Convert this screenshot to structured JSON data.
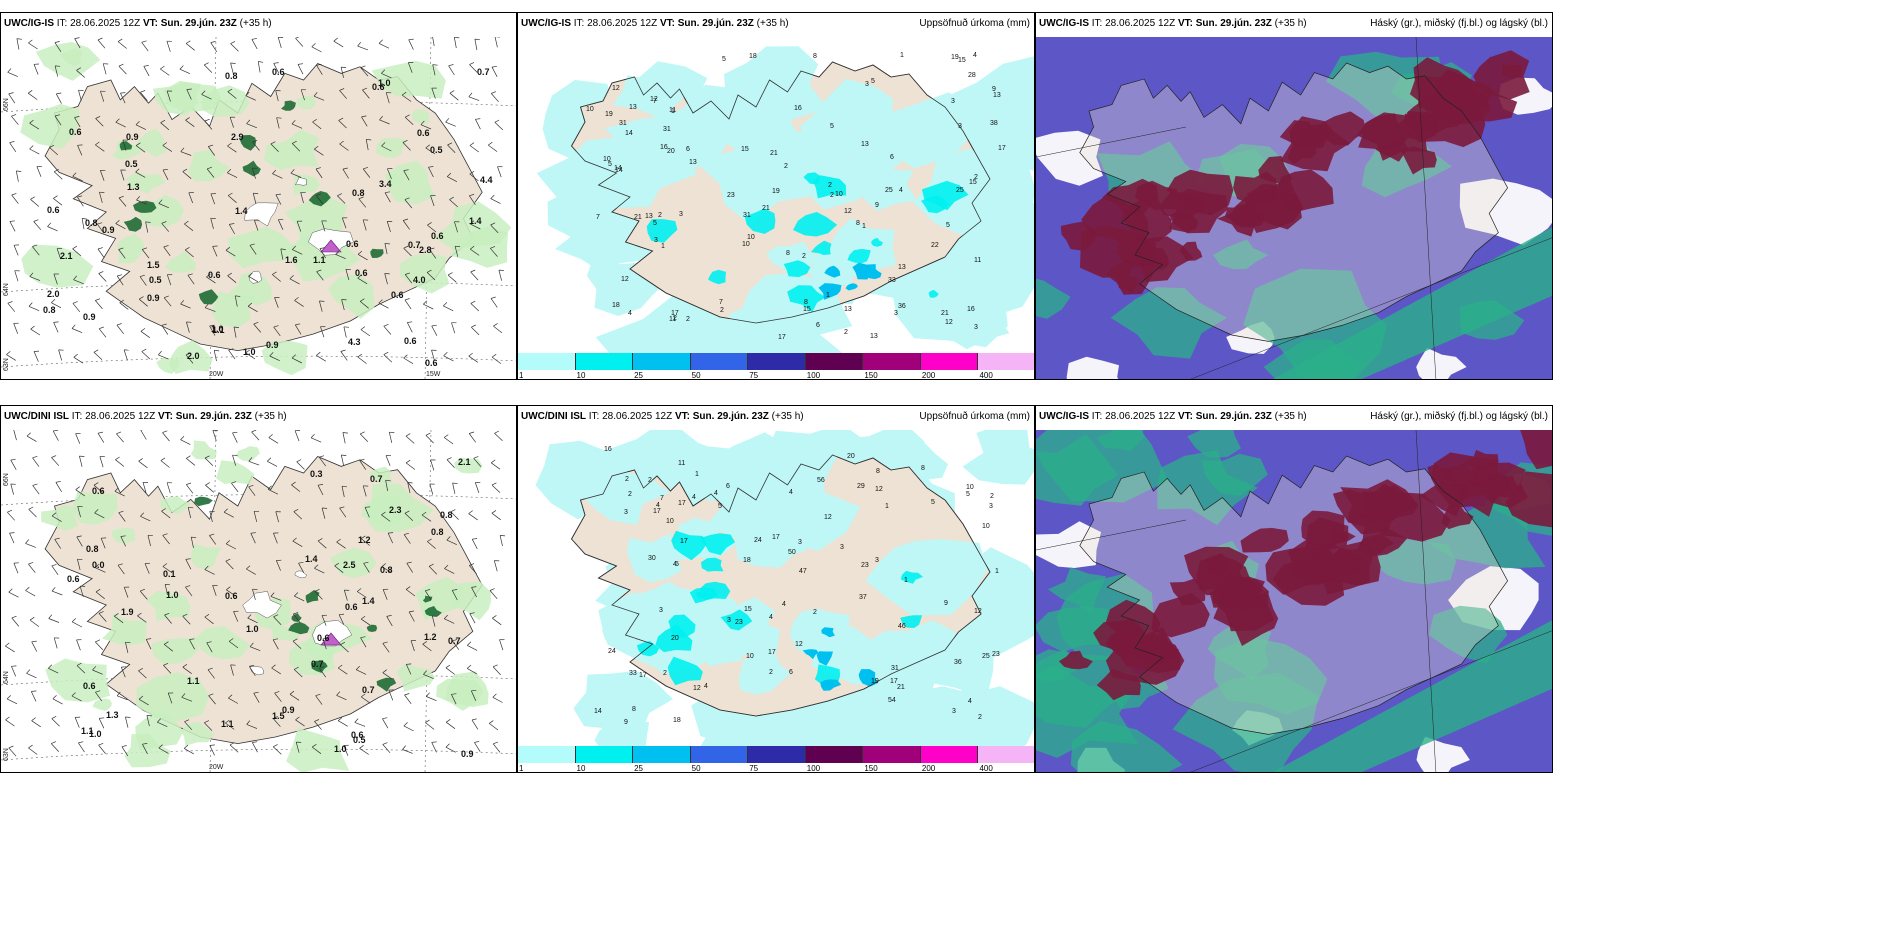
{
  "rows": [
    {
      "model": "UWC/IG-IS",
      "panels": [
        {
          "source": "UWC/IG-IS",
          "it_label": "IT:",
          "it": "28.06.2025 12Z",
          "vt_label": "VT:",
          "vt": "Sun. 29.jún. 23Z",
          "lead": "(+35 h)",
          "right": ""
        },
        {
          "source": "UWC/IG-IS",
          "it_label": "IT:",
          "it": "28.06.2025 12Z",
          "vt_label": "VT:",
          "vt": "Sun. 29.jún. 23Z",
          "lead": "(+35 h)",
          "right": "Uppsöfnuð úrkoma (mm)"
        },
        {
          "source": "UWC/IG-IS",
          "it_label": "IT:",
          "it": "28.06.2025 12Z",
          "vt_label": "VT:",
          "vt": "Sun. 29.jún. 23Z",
          "lead": "(+35 h)",
          "right": "Háský (gr.), miðský (fj.bl.) og lágský (bl.)"
        }
      ],
      "precip_values": [
        "3",
        "2",
        "1",
        "1",
        "2",
        "4",
        "5",
        "3",
        "2",
        "2",
        "4",
        "5",
        "8",
        "7",
        "6",
        "8",
        "5",
        "7",
        "12",
        "13",
        "12",
        "13",
        "11",
        "15",
        "11",
        "10",
        "9",
        "23",
        "13",
        "14",
        "15",
        "16",
        "13",
        "19",
        "16",
        "21",
        "9",
        "10",
        "11",
        "4",
        "2",
        "2",
        "3",
        "2",
        "6",
        "1",
        "7",
        "3",
        "5",
        "8",
        "13",
        "13",
        "21",
        "19",
        "15",
        "17",
        "18",
        "16",
        "10",
        "12",
        "10",
        "20",
        "22",
        "25",
        "28",
        "21",
        "17",
        "13",
        "5",
        "14",
        "31",
        "31",
        "25",
        "21",
        "18",
        "17",
        "33",
        "36",
        "38",
        "5",
        "6",
        "3",
        "2",
        "1",
        "1",
        "2",
        "12",
        "10",
        "19",
        "31",
        "14",
        "15",
        "13",
        "2",
        "3",
        "3",
        "8",
        "12"
      ],
      "wind_values": [
        "0.6",
        "0.8",
        "0.9",
        "0.7",
        "0.8",
        "0.6",
        "0.9",
        "0.5",
        "0.8",
        "0.6",
        "0.6",
        "0.6",
        "0.5",
        "0.6",
        "0.6",
        "0.9",
        "1.4",
        "0.6",
        "0.7",
        "1.1",
        "1.6",
        "2.1",
        "1.5",
        "0.9",
        "3.4",
        "2.0",
        "1.0",
        "1.0",
        "2.0",
        "0.8",
        "0.9",
        "0.5",
        "0.6",
        "4.0",
        "0.6",
        "0.6",
        "1.3",
        "0.6",
        "1.1",
        "1.0",
        "1.4",
        "2.9",
        "2.8",
        "4.3",
        "4.4"
      ]
    },
    {
      "model": "UWC/DINI ISL",
      "panels": [
        {
          "source": "UWC/DINI ISL",
          "it_label": "IT:",
          "it": "28.06.2025 12Z",
          "vt_label": "VT:",
          "vt": "Sun. 29.jún. 23Z",
          "lead": "(+35 h)",
          "right": ""
        },
        {
          "source": "UWC/DINI ISL",
          "it_label": "IT:",
          "it": "28.06.2025 12Z",
          "vt_label": "VT:",
          "vt": "Sun. 29.jún. 23Z",
          "lead": "(+35 h)",
          "right": "Uppsöfnuð úrkoma (mm)"
        },
        {
          "source": "UWC/IG-IS",
          "it_label": "IT:",
          "it": "28.06.2025 12Z",
          "vt_label": "VT:",
          "vt": "Sun. 29.jún. 23Z",
          "lead": "(+35 h)",
          "right": "Háský (gr.), miðský (fj.bl.) og lágský (bl.)"
        }
      ],
      "precip_values": [
        "3",
        "5",
        "2",
        "2",
        "4",
        "3",
        "2",
        "4",
        "2",
        "1",
        "3",
        "4",
        "6",
        "4",
        "4",
        "5",
        "5",
        "4",
        "8",
        "8",
        "6",
        "8",
        "7",
        "9",
        "4",
        "10",
        "12",
        "9",
        "17",
        "18",
        "16",
        "21",
        "17",
        "17",
        "18",
        "10",
        "12",
        "23",
        "31",
        "23",
        "24",
        "20",
        "10",
        "17",
        "23",
        "11",
        "15",
        "17",
        "17",
        "50",
        "47",
        "54",
        "56",
        "36",
        "37",
        "30",
        "33",
        "29",
        "24",
        "25",
        "46",
        "17",
        "14",
        "2",
        "3",
        "4",
        "3",
        "3",
        "2",
        "1",
        "3",
        "1",
        "1",
        "5",
        "4",
        "2",
        "3",
        "2",
        "10",
        "12",
        "19",
        "12",
        "12",
        "20"
      ],
      "wind_values": [
        "0.7",
        "0.5",
        "0.7",
        "1.0",
        "0.6",
        "1.0",
        "0.8",
        "1.1",
        "1.4",
        "0.6",
        "0.6",
        "0.6",
        "1.1",
        "1.3",
        "1.0",
        "0.6",
        "0.7",
        "0.8",
        "0.6",
        "0.8",
        "0.1",
        "0.6",
        "1.5",
        "0.8",
        "1.4",
        "0.9",
        "0.7",
        "2.3",
        "0.9",
        "0.0",
        "1.0",
        "1.1",
        "1.2",
        "0.3",
        "2.1",
        "2.5",
        "1.9",
        "1.2"
      ]
    }
  ],
  "colorbar": {
    "labels": [
      "1",
      "10",
      "25",
      "50",
      "75",
      "100",
      "150",
      "200",
      "400"
    ],
    "colors": [
      "#b4fbfb",
      "#00f0f0",
      "#00c0f0",
      "#3264e8",
      "#2d2ba8",
      "#600050",
      "#a0007a",
      "#ff00c8",
      "#f5b4f5"
    ]
  },
  "grid_labels": {
    "lat_66": "66N",
    "lat_64": "64N",
    "lat_63": "63N",
    "lon_20": "20W",
    "lon_15": "15W"
  },
  "colors": {
    "land": "#ede2d3",
    "precip_bg": "#bff7f7",
    "cloud_high": "#7a1a3c",
    "cloud_mid": "#5d56c6",
    "cloud_low": "#2bb08a",
    "green_light": "#c8eec0",
    "green_dark": "#1e6b34"
  }
}
